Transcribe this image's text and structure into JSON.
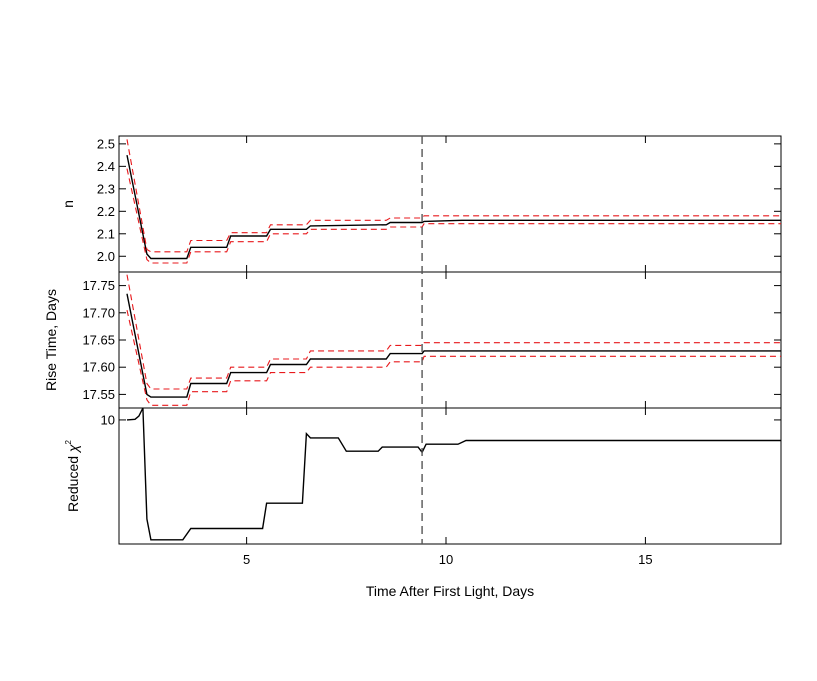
{
  "chart_data": [
    {
      "type": "line",
      "panel": "top",
      "ylabel": "n",
      "xlim": [
        1.8,
        18.4
      ],
      "ylim": [
        1.93,
        2.535
      ],
      "yticks": [
        2.0,
        2.1,
        2.2,
        2.3,
        2.4,
        2.5
      ],
      "ytick_labels": [
        "2.0",
        "2.1",
        "2.2",
        "2.3",
        "2.4",
        "2.5"
      ],
      "series": [
        {
          "role": "fit",
          "color": "#000000",
          "style": "solid",
          "points": [
            [
              2.0,
              2.45
            ],
            [
              2.5,
              2.01
            ],
            [
              2.6,
              1.99
            ],
            [
              3.5,
              1.99
            ],
            [
              3.6,
              2.04
            ],
            [
              4.5,
              2.04
            ],
            [
              4.6,
              2.09
            ],
            [
              5.5,
              2.09
            ],
            [
              5.6,
              2.12
            ],
            [
              6.5,
              2.12
            ],
            [
              6.6,
              2.135
            ],
            [
              8.5,
              2.14
            ],
            [
              8.6,
              2.15
            ],
            [
              9.4,
              2.15
            ],
            [
              9.45,
              2.155
            ],
            [
              10.4,
              2.16
            ],
            [
              18.4,
              2.16
            ]
          ]
        },
        {
          "role": "upper-bound",
          "color": "#e8191c",
          "style": "dashed",
          "points": [
            [
              2.0,
              2.52
            ],
            [
              2.5,
              2.03
            ],
            [
              2.6,
              2.02
            ],
            [
              3.5,
              2.02
            ],
            [
              3.6,
              2.07
            ],
            [
              4.5,
              2.07
            ],
            [
              4.6,
              2.105
            ],
            [
              5.5,
              2.105
            ],
            [
              5.6,
              2.14
            ],
            [
              6.5,
              2.14
            ],
            [
              6.6,
              2.16
            ],
            [
              8.5,
              2.16
            ],
            [
              8.6,
              2.17
            ],
            [
              9.4,
              2.17
            ],
            [
              9.45,
              2.18
            ],
            [
              10.4,
              2.18
            ],
            [
              18.4,
              2.18
            ]
          ]
        },
        {
          "role": "lower-bound",
          "color": "#e8191c",
          "style": "dashed",
          "points": [
            [
              2.0,
              2.39
            ],
            [
              2.5,
              1.985
            ],
            [
              2.6,
              1.97
            ],
            [
              3.5,
              1.97
            ],
            [
              3.6,
              2.02
            ],
            [
              4.5,
              2.02
            ],
            [
              4.6,
              2.065
            ],
            [
              5.5,
              2.065
            ],
            [
              5.6,
              2.1
            ],
            [
              6.5,
              2.1
            ],
            [
              6.6,
              2.12
            ],
            [
              8.5,
              2.12
            ],
            [
              8.6,
              2.13
            ],
            [
              9.4,
              2.13
            ],
            [
              9.45,
              2.145
            ],
            [
              10.4,
              2.145
            ],
            [
              18.4,
              2.145
            ]
          ]
        }
      ]
    },
    {
      "type": "line",
      "panel": "middle",
      "ylabel": "Rise Time, Days",
      "xlim": [
        1.8,
        18.4
      ],
      "ylim": [
        17.525,
        17.775
      ],
      "yticks": [
        17.55,
        17.6,
        17.65,
        17.7,
        17.75
      ],
      "ytick_labels": [
        "17.55",
        "17.60",
        "17.65",
        "17.70",
        "17.75"
      ],
      "series": [
        {
          "role": "fit",
          "color": "#000000",
          "style": "solid",
          "points": [
            [
              2.0,
              17.735
            ],
            [
              2.5,
              17.55
            ],
            [
              2.6,
              17.545
            ],
            [
              3.5,
              17.545
            ],
            [
              3.6,
              17.57
            ],
            [
              4.5,
              17.57
            ],
            [
              4.6,
              17.59
            ],
            [
              5.5,
              17.59
            ],
            [
              5.6,
              17.605
            ],
            [
              6.5,
              17.605
            ],
            [
              6.6,
              17.615
            ],
            [
              7.5,
              17.615
            ],
            [
              7.6,
              17.615
            ],
            [
              8.5,
              17.615
            ],
            [
              8.6,
              17.625
            ],
            [
              9.4,
              17.625
            ],
            [
              9.45,
              17.63
            ],
            [
              10.4,
              17.63
            ],
            [
              18.4,
              17.63
            ]
          ]
        },
        {
          "role": "upper-bound",
          "color": "#e8191c",
          "style": "dashed",
          "points": [
            [
              2.0,
              17.77
            ],
            [
              2.5,
              17.57
            ],
            [
              2.6,
              17.56
            ],
            [
              3.5,
              17.56
            ],
            [
              3.6,
              17.58
            ],
            [
              4.5,
              17.58
            ],
            [
              4.6,
              17.6
            ],
            [
              5.5,
              17.6
            ],
            [
              5.6,
              17.615
            ],
            [
              6.5,
              17.615
            ],
            [
              6.6,
              17.63
            ],
            [
              8.5,
              17.63
            ],
            [
              8.6,
              17.64
            ],
            [
              9.4,
              17.64
            ],
            [
              9.45,
              17.645
            ],
            [
              10.4,
              17.645
            ],
            [
              18.4,
              17.645
            ]
          ]
        },
        {
          "role": "lower-bound",
          "color": "#e8191c",
          "style": "dashed",
          "points": [
            [
              2.0,
              17.705
            ],
            [
              2.5,
              17.54
            ],
            [
              2.6,
              17.53
            ],
            [
              3.5,
              17.53
            ],
            [
              3.6,
              17.555
            ],
            [
              4.5,
              17.555
            ],
            [
              4.6,
              17.575
            ],
            [
              5.5,
              17.575
            ],
            [
              5.6,
              17.59
            ],
            [
              6.5,
              17.59
            ],
            [
              6.6,
              17.6
            ],
            [
              8.5,
              17.6
            ],
            [
              8.6,
              17.61
            ],
            [
              9.4,
              17.61
            ],
            [
              9.45,
              17.62
            ],
            [
              10.4,
              17.62
            ],
            [
              18.4,
              17.62
            ]
          ]
        }
      ]
    },
    {
      "type": "line",
      "panel": "bottom",
      "ylabel": "Reduced χ²",
      "ylabel_main": "Reduced ",
      "ylabel_symbol": "χ",
      "ylabel_sup": "2",
      "xlabel": "Time After First Light, Days",
      "xlim": [
        1.8,
        18.4
      ],
      "ylim": [
        1.5,
        12.0
      ],
      "yscale": "log",
      "yticks": [
        10
      ],
      "ytick_labels": [
        "10"
      ],
      "xticks": [
        5,
        10,
        15
      ],
      "xtick_labels": [
        "5",
        "10",
        "15"
      ],
      "series": [
        {
          "role": "fit",
          "color": "#000000",
          "style": "solid",
          "points": [
            [
              2.0,
              10.0
            ],
            [
              2.2,
              10.1
            ],
            [
              2.3,
              10.6
            ],
            [
              2.4,
              12.0
            ],
            [
              2.5,
              2.2
            ],
            [
              2.6,
              1.6
            ],
            [
              3.4,
              1.6
            ],
            [
              3.6,
              1.9
            ],
            [
              4.5,
              1.9
            ],
            [
              5.4,
              1.9
            ],
            [
              5.5,
              2.8
            ],
            [
              6.4,
              2.8
            ],
            [
              6.5,
              8.1
            ],
            [
              6.6,
              7.6
            ],
            [
              7.3,
              7.6
            ],
            [
              7.5,
              6.2
            ],
            [
              8.3,
              6.2
            ],
            [
              8.4,
              6.6
            ],
            [
              9.3,
              6.6
            ],
            [
              9.4,
              6.1
            ],
            [
              9.5,
              6.9
            ],
            [
              10.3,
              6.9
            ],
            [
              10.5,
              7.3
            ],
            [
              18.4,
              7.3
            ]
          ]
        }
      ]
    }
  ],
  "reference_line_x": 9.4
}
